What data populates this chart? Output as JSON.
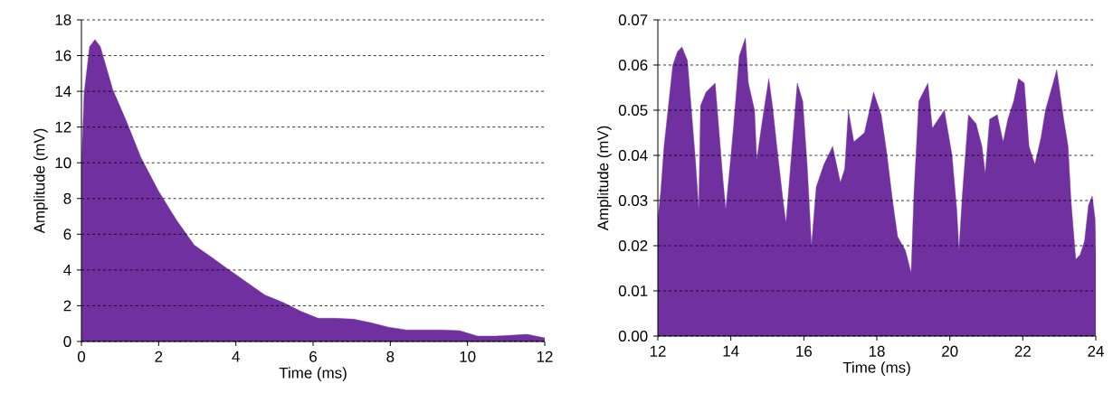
{
  "chart_data": [
    {
      "type": "area",
      "xlabel": "Time (ms)",
      "ylabel": "Amplitude (mV)",
      "color": "#7030a0",
      "grid": "y",
      "xlim": [
        0,
        12
      ],
      "ylim": [
        0,
        18
      ],
      "xticks": [
        0,
        2,
        4,
        6,
        8,
        10,
        12
      ],
      "yticks": [
        0,
        2,
        4,
        6,
        8,
        10,
        12,
        14,
        16,
        18
      ],
      "x": [
        0,
        0.07,
        0.21,
        0.35,
        0.49,
        0.81,
        1.17,
        1.54,
        2.0,
        2.46,
        2.92,
        3.38,
        3.83,
        4.29,
        4.75,
        5.21,
        5.67,
        6.13,
        6.59,
        7.05,
        7.5,
        7.96,
        8.42,
        8.88,
        9.34,
        9.8,
        10.26,
        10.72,
        11.17,
        11.54,
        12
      ],
      "values": [
        9.8,
        13.9,
        16.5,
        16.9,
        16.5,
        14.1,
        12.3,
        10.3,
        8.4,
        6.8,
        5.4,
        4.7,
        4.0,
        3.3,
        2.6,
        2.2,
        1.7,
        1.3,
        1.3,
        1.25,
        1.05,
        0.8,
        0.65,
        0.65,
        0.65,
        0.6,
        0.3,
        0.3,
        0.35,
        0.4,
        0.2
      ]
    },
    {
      "type": "area",
      "xlabel": "Time (ms)",
      "ylabel": "Amplitude (mV)",
      "color": "#7030a0",
      "grid": "y",
      "xlim": [
        12,
        24
      ],
      "ylim": [
        0,
        0.07
      ],
      "xticks": [
        12,
        14,
        16,
        18,
        20,
        22,
        24
      ],
      "yticks": [
        {
          "value": 0,
          "label": "0.00"
        },
        {
          "value": 0.01,
          "label": "0.01"
        },
        {
          "value": 0.02,
          "label": "0.02"
        },
        {
          "value": 0.03,
          "label": "0.03"
        },
        {
          "value": 0.04,
          "label": "0.04"
        },
        {
          "value": 0.05,
          "label": "0.05"
        },
        {
          "value": 0.06,
          "label": "0.06"
        },
        {
          "value": 0.07,
          "label": "0.07"
        }
      ],
      "x": [
        12,
        12.08,
        12.17,
        12.33,
        12.41,
        12.54,
        12.66,
        12.81,
        12.91,
        13.03,
        13.12,
        13.17,
        13.32,
        13.57,
        13.65,
        13.78,
        13.86,
        13.98,
        14.07,
        14.23,
        14.4,
        14.48,
        14.65,
        14.71,
        14.85,
        15.04,
        15.14,
        15.26,
        15.43,
        15.51,
        15.64,
        15.82,
        15.97,
        16.09,
        16.21,
        16.34,
        16.55,
        16.79,
        17.0,
        17.12,
        17.22,
        17.37,
        17.66,
        17.91,
        18.12,
        18.28,
        18.43,
        18.57,
        18.78,
        18.94,
        19.02,
        19.15,
        19.4,
        19.52,
        19.85,
        20.06,
        20.19,
        20.25,
        20.35,
        20.51,
        20.72,
        20.88,
        20.97,
        21.09,
        21.3,
        21.46,
        21.59,
        21.75,
        21.88,
        22.04,
        22.17,
        22.33,
        22.5,
        22.62,
        22.83,
        22.93,
        23.12,
        23.24,
        23.32,
        23.45,
        23.57,
        23.69,
        23.8,
        23.9,
        23.98,
        24
      ],
      "values": [
        0.026,
        0.032,
        0.042,
        0.054,
        0.06,
        0.063,
        0.064,
        0.061,
        0.051,
        0.039,
        0.028,
        0.051,
        0.054,
        0.056,
        0.048,
        0.035,
        0.028,
        0.038,
        0.046,
        0.062,
        0.066,
        0.056,
        0.05,
        0.039,
        0.047,
        0.057,
        0.051,
        0.042,
        0.03,
        0.025,
        0.038,
        0.056,
        0.052,
        0.038,
        0.02,
        0.033,
        0.038,
        0.042,
        0.034,
        0.037,
        0.05,
        0.043,
        0.045,
        0.054,
        0.049,
        0.04,
        0.03,
        0.022,
        0.019,
        0.014,
        0.032,
        0.052,
        0.056,
        0.046,
        0.05,
        0.04,
        0.028,
        0.019,
        0.032,
        0.049,
        0.047,
        0.042,
        0.036,
        0.048,
        0.049,
        0.043,
        0.048,
        0.052,
        0.057,
        0.056,
        0.042,
        0.038,
        0.044,
        0.05,
        0.056,
        0.059,
        0.048,
        0.042,
        0.03,
        0.017,
        0.018,
        0.021,
        0.029,
        0.031,
        0.026,
        0.018
      ]
    }
  ]
}
